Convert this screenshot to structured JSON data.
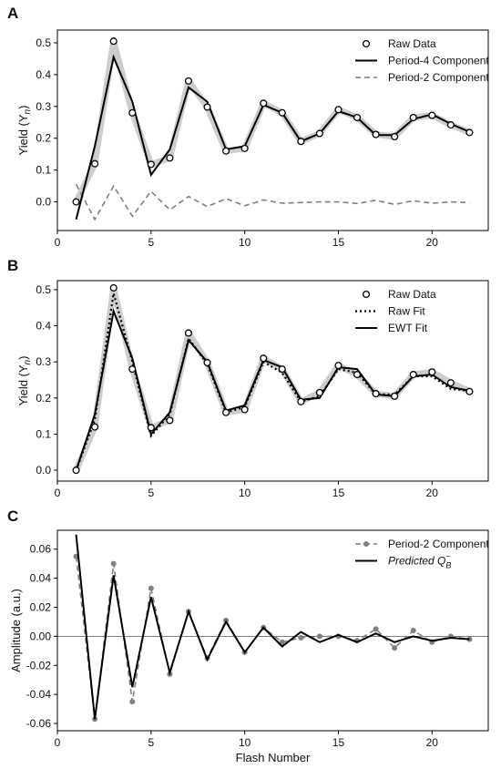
{
  "chart_data": [
    {
      "type": "line",
      "panel_label": "A",
      "ylabel": "Yield (Y",
      "ylabel_sub": "n",
      "ylabel_close": ")",
      "xlim": [
        0,
        23
      ],
      "ylim": [
        -0.09,
        0.54
      ],
      "xticks": [
        0,
        5,
        10,
        15,
        20
      ],
      "yticks": [
        0.0,
        0.1,
        0.2,
        0.3,
        0.4,
        0.5
      ],
      "ytick_labels": [
        "0.0",
        "0.1",
        "0.2",
        "0.3",
        "0.4",
        "0.5"
      ],
      "legend": "top-right",
      "series": [
        {
          "name": "Raw Data",
          "style": "open-circle",
          "color": "#000000",
          "x": [
            1,
            2,
            3,
            4,
            5,
            6,
            7,
            8,
            9,
            10,
            11,
            12,
            13,
            14,
            15,
            16,
            17,
            18,
            19,
            20,
            21,
            22
          ],
          "y": [
            0.0,
            0.12,
            0.505,
            0.28,
            0.118,
            0.138,
            0.38,
            0.298,
            0.16,
            0.168,
            0.31,
            0.28,
            0.19,
            0.215,
            0.29,
            0.265,
            0.212,
            0.205,
            0.265,
            0.272,
            0.242,
            0.218
          ]
        },
        {
          "name": "Period-4 Component",
          "style": "solid",
          "color": "#000000",
          "x": [
            1,
            2,
            3,
            4,
            5,
            6,
            7,
            8,
            9,
            10,
            11,
            12,
            13,
            14,
            15,
            16,
            17,
            18,
            19,
            20,
            21,
            22
          ],
          "y": [
            -0.055,
            0.175,
            0.455,
            0.315,
            0.085,
            0.165,
            0.36,
            0.315,
            0.165,
            0.175,
            0.305,
            0.28,
            0.19,
            0.215,
            0.285,
            0.265,
            0.21,
            0.21,
            0.26,
            0.275,
            0.245,
            0.22
          ]
        },
        {
          "name": "Period-2 Component",
          "style": "dashed",
          "color": "#7f7f7f",
          "x": [
            1,
            2,
            3,
            4,
            5,
            6,
            7,
            8,
            9,
            10,
            11,
            12,
            13,
            14,
            15,
            16,
            17,
            18,
            19,
            20,
            21,
            22
          ],
          "y": [
            0.055,
            -0.055,
            0.05,
            -0.045,
            0.033,
            -0.025,
            0.017,
            -0.015,
            0.01,
            -0.012,
            0.006,
            -0.004,
            -0.002,
            0.0,
            0.0,
            -0.005,
            0.005,
            -0.008,
            0.004,
            -0.004,
            0.0,
            -0.002
          ]
        },
        {
          "name": "",
          "style": "band",
          "color": "#c8c8c8",
          "x": [
            1,
            2,
            3,
            4,
            5,
            6,
            7,
            8,
            9,
            10,
            11,
            12,
            13,
            14,
            15,
            16,
            17,
            18,
            19,
            20,
            21,
            22
          ],
          "y": [
            0.0,
            0.12,
            0.505,
            0.28,
            0.118,
            0.138,
            0.38,
            0.298,
            0.16,
            0.168,
            0.31,
            0.28,
            0.19,
            0.215,
            0.29,
            0.265,
            0.212,
            0.205,
            0.265,
            0.272,
            0.242,
            0.218
          ]
        }
      ]
    },
    {
      "type": "line",
      "panel_label": "B",
      "ylabel": "Yield (Y",
      "ylabel_sub": "n",
      "ylabel_close": ")",
      "xlim": [
        0,
        23
      ],
      "ylim": [
        -0.03,
        0.525
      ],
      "xticks": [
        0,
        5,
        10,
        15,
        20
      ],
      "yticks": [
        0.0,
        0.1,
        0.2,
        0.3,
        0.4,
        0.5
      ],
      "ytick_labels": [
        "0.0",
        "0.1",
        "0.2",
        "0.3",
        "0.4",
        "0.5"
      ],
      "legend": "top-right",
      "series": [
        {
          "name": "Raw Data",
          "style": "open-circle",
          "color": "#000000",
          "x": [
            1,
            2,
            3,
            4,
            5,
            6,
            7,
            8,
            9,
            10,
            11,
            12,
            13,
            14,
            15,
            16,
            17,
            18,
            19,
            20,
            21,
            22
          ],
          "y": [
            0.0,
            0.12,
            0.505,
            0.28,
            0.118,
            0.138,
            0.38,
            0.298,
            0.16,
            0.168,
            0.31,
            0.28,
            0.19,
            0.215,
            0.29,
            0.265,
            0.212,
            0.205,
            0.265,
            0.272,
            0.242,
            0.218
          ]
        },
        {
          "name": "Raw Fit",
          "style": "dotted",
          "color": "#000000",
          "x": [
            1,
            2,
            3,
            4,
            5,
            6,
            7,
            8,
            9,
            10,
            11,
            12,
            13,
            14,
            15,
            16,
            17,
            18,
            19,
            20,
            21,
            22
          ],
          "y": [
            0.0,
            0.14,
            0.49,
            0.3,
            0.095,
            0.155,
            0.365,
            0.295,
            0.16,
            0.175,
            0.3,
            0.27,
            0.19,
            0.205,
            0.28,
            0.27,
            0.21,
            0.21,
            0.26,
            0.26,
            0.225,
            0.22
          ]
        },
        {
          "name": "EWT Fit",
          "style": "solid",
          "color": "#000000",
          "x": [
            1,
            2,
            3,
            4,
            5,
            6,
            7,
            8,
            9,
            10,
            11,
            12,
            13,
            14,
            15,
            16,
            17,
            18,
            19,
            20,
            21,
            22
          ],
          "y": [
            0.0,
            0.155,
            0.44,
            0.31,
            0.1,
            0.16,
            0.36,
            0.3,
            0.165,
            0.18,
            0.305,
            0.285,
            0.195,
            0.2,
            0.285,
            0.28,
            0.21,
            0.205,
            0.26,
            0.265,
            0.23,
            0.22
          ]
        },
        {
          "name": "",
          "style": "band",
          "color": "#c8c8c8",
          "x": [
            1,
            2,
            3,
            4,
            5,
            6,
            7,
            8,
            9,
            10,
            11,
            12,
            13,
            14,
            15,
            16,
            17,
            18,
            19,
            20,
            21,
            22
          ],
          "y": [
            0.0,
            0.12,
            0.505,
            0.28,
            0.118,
            0.138,
            0.38,
            0.298,
            0.16,
            0.168,
            0.31,
            0.28,
            0.19,
            0.215,
            0.29,
            0.265,
            0.212,
            0.205,
            0.265,
            0.272,
            0.242,
            0.218
          ]
        }
      ]
    },
    {
      "type": "line",
      "panel_label": "C",
      "xlabel": "Flash Number",
      "ylabel": "Amplitude (a.u.)",
      "xlim": [
        0,
        23
      ],
      "ylim": [
        -0.065,
        0.073
      ],
      "xticks": [
        0,
        5,
        10,
        15,
        20
      ],
      "yticks": [
        -0.06,
        -0.04,
        -0.02,
        0.0,
        0.02,
        0.04,
        0.06
      ],
      "ytick_labels": [
        "-0.06",
        "-0.04",
        "-0.02",
        "0.00",
        "0.02",
        "0.04",
        "0.06"
      ],
      "zero_line": true,
      "legend": "top-right",
      "series": [
        {
          "name": "Period-2 Component",
          "style": "dashed-dot",
          "color": "#7f7f7f",
          "x": [
            1,
            2,
            3,
            4,
            5,
            6,
            7,
            8,
            9,
            10,
            11,
            12,
            13,
            14,
            15,
            16,
            17,
            18,
            19,
            20,
            21,
            22
          ],
          "y": [
            0.055,
            -0.057,
            0.05,
            -0.045,
            0.033,
            -0.026,
            0.017,
            -0.015,
            0.011,
            -0.011,
            0.006,
            -0.004,
            -0.001,
            0.0,
            0.0,
            -0.003,
            0.005,
            -0.008,
            0.004,
            -0.004,
            0.0,
            -0.002
          ]
        },
        {
          "name": "Predicted Q",
          "name_sub": "B",
          "name_sup": "−",
          "style": "solid",
          "color": "#000000",
          "x": [
            1,
            2,
            3,
            4,
            5,
            6,
            7,
            8,
            9,
            10,
            11,
            12,
            13,
            14,
            15,
            16,
            17,
            18,
            19,
            20,
            21,
            22
          ],
          "y": [
            0.07,
            -0.057,
            0.042,
            -0.035,
            0.027,
            -0.025,
            0.017,
            -0.016,
            0.01,
            -0.011,
            0.006,
            -0.007,
            0.003,
            -0.004,
            0.001,
            -0.004,
            0.002,
            -0.004,
            0.0,
            -0.003,
            -0.001,
            -0.002
          ]
        }
      ]
    }
  ]
}
